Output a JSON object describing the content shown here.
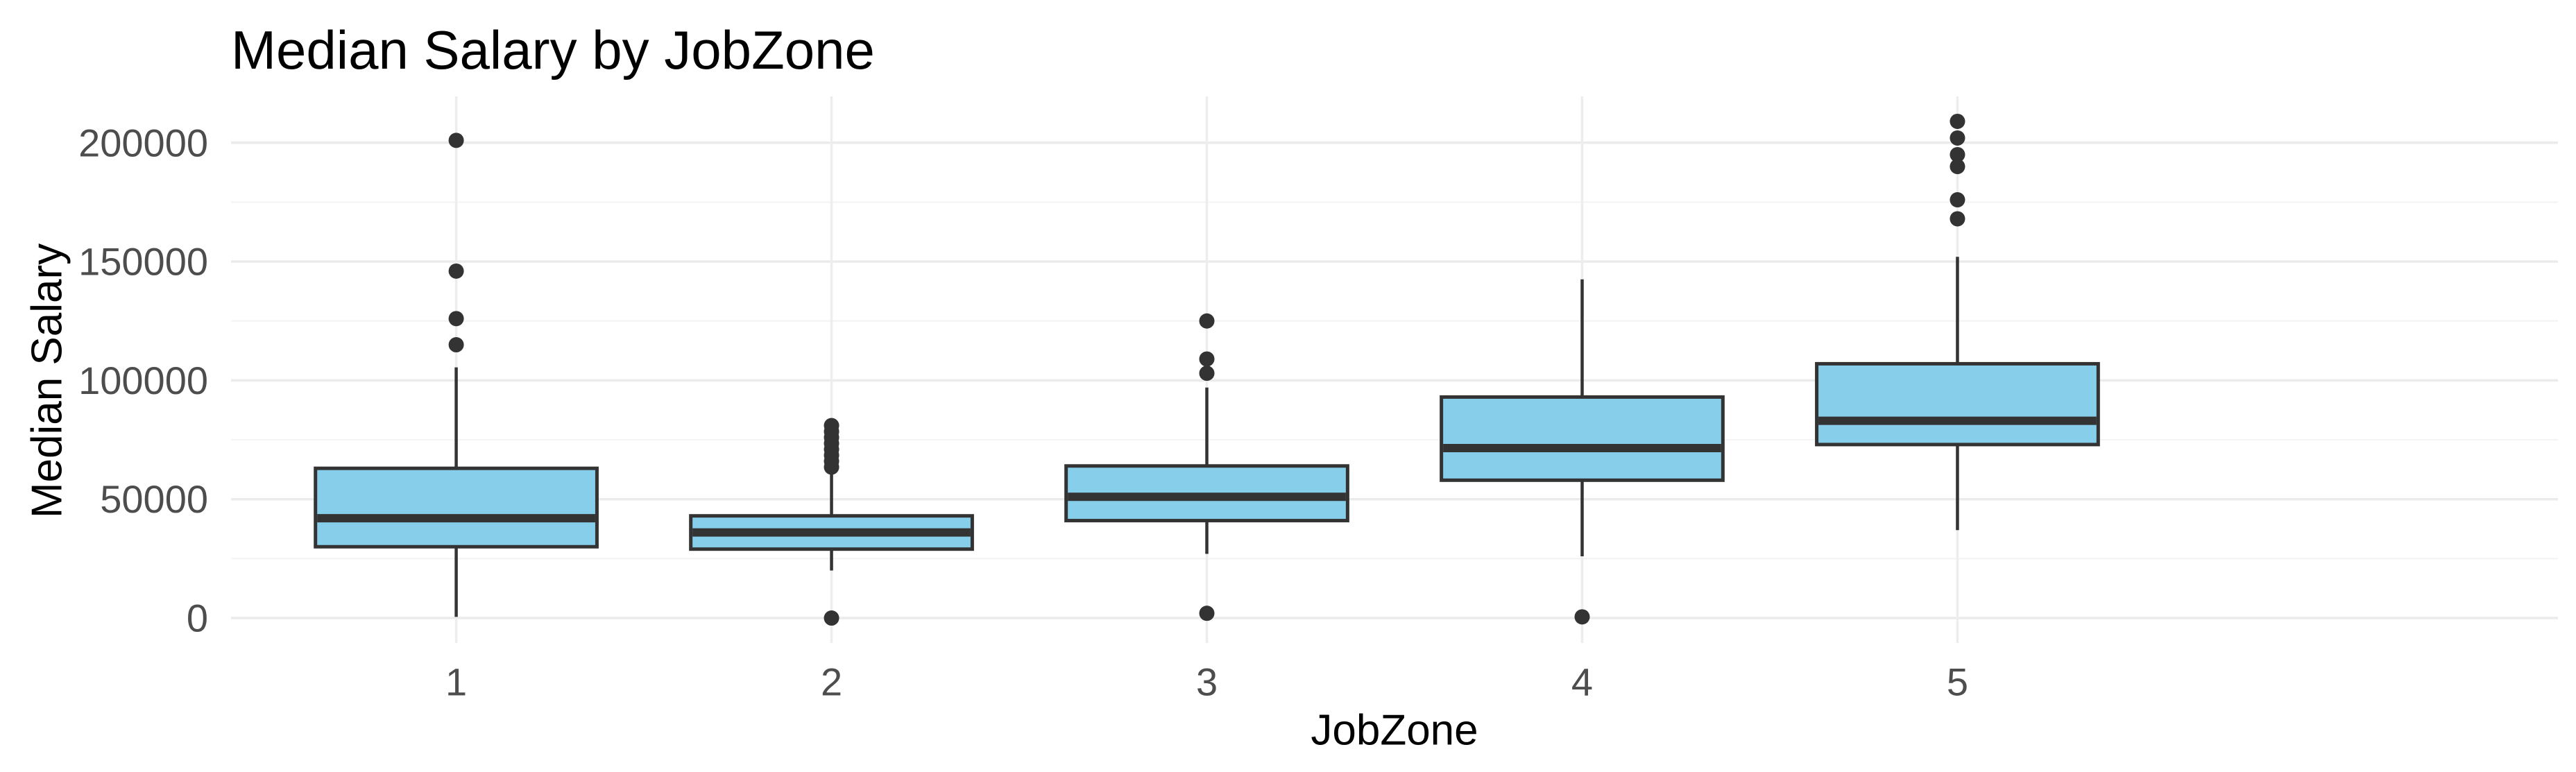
{
  "title": "Median Salary by JobZone",
  "colors": {
    "background": "#FFFFFF",
    "box_fill": "#87CEEB",
    "box_stroke": "#333333",
    "median_stroke": "#333333",
    "whisker_stroke": "#333333",
    "outlier_fill": "#333333",
    "grid_major": "#EBEBEB",
    "grid_minor": "#F4F4F4",
    "grid_vertical": "#EDEDED",
    "tick_label": "#4D4D4D",
    "axis_title": "#000000",
    "title": "#000000"
  },
  "chart_data": {
    "type": "boxplot",
    "title": "Median Salary by JobZone",
    "xlabel": "JobZone",
    "ylabel": "Median Salary",
    "categories": [
      "1",
      "2",
      "3",
      "4",
      "5"
    ],
    "y_major_ticks": [
      0,
      50000,
      100000,
      150000,
      200000
    ],
    "y_major_tick_labels": [
      "0",
      "50000",
      "100000",
      "150000",
      "200000"
    ],
    "y_minor_ticks": [
      25000,
      75000,
      125000,
      175000
    ],
    "ylim": [
      -10500,
      219500
    ],
    "grid": "horizontal major+minor, vertical at category centers",
    "legend": "none",
    "box_width_units": 0.75,
    "series": [
      {
        "category": "1",
        "whisker_low": 500,
        "q1": 30000,
        "median": 42000,
        "q3": 63000,
        "whisker_high": 105500,
        "outliers": [
          115000,
          126000,
          146000,
          201000
        ]
      },
      {
        "category": "2",
        "whisker_low": 20000,
        "q1": 29000,
        "median": 36000,
        "q3": 43000,
        "whisker_high": 61500,
        "outliers": [
          0,
          63500,
          66000,
          68500,
          71000,
          73500,
          76000,
          78500,
          81000
        ]
      },
      {
        "category": "3",
        "whisker_low": 27000,
        "q1": 41000,
        "median": 51000,
        "q3": 64000,
        "whisker_high": 97000,
        "outliers": [
          2000,
          103000,
          109000,
          125000
        ]
      },
      {
        "category": "4",
        "whisker_low": 26000,
        "q1": 58000,
        "median": 71500,
        "q3": 93000,
        "whisker_high": 142500,
        "outliers": [
          500
        ]
      },
      {
        "category": "5",
        "whisker_low": 37000,
        "q1": 73000,
        "median": 83000,
        "q3": 107000,
        "whisker_high": 152000,
        "outliers": [
          168000,
          176000,
          190000,
          195000,
          202000,
          209000
        ]
      }
    ]
  }
}
